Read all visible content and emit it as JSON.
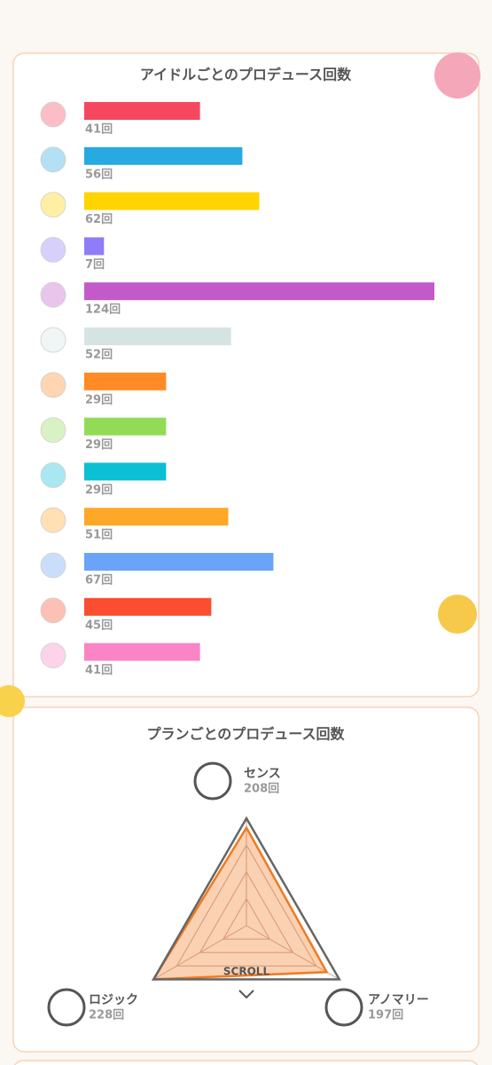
{
  "chart_data": [
    {
      "type": "bar",
      "title": "アイドルごとのプロデュース回数",
      "categories": [
        null,
        null,
        null,
        null,
        null,
        null,
        null,
        null,
        null,
        null,
        null,
        null,
        null
      ],
      "values": [
        41,
        56,
        62,
        7,
        124,
        52,
        29,
        29,
        29,
        51,
        67,
        45,
        41
      ],
      "value_labels": [
        "41回",
        "56回",
        "62回",
        "7回",
        "124回",
        "52回",
        "29回",
        "29回",
        "29回",
        "51回",
        "67回",
        "45回",
        "41回"
      ],
      "colors": [
        "#f7475e",
        "#27a9e1",
        "#ffd400",
        "#8f7cf7",
        "#c25bc9",
        "#d5e3e3",
        "#ff8a26",
        "#92dc55",
        "#0bbfd5",
        "#ffa726",
        "#6aa3f8",
        "#fb4d2f",
        "#fb84c5"
      ]
    },
    {
      "type": "radar",
      "title": "プランごとのプロデュース回数",
      "categories": [
        "センス",
        "ロジック",
        "アノマリー"
      ],
      "values": [
        208,
        228,
        197
      ],
      "value_labels": [
        "208回",
        "228回",
        "197回"
      ],
      "color": "#f07a22",
      "scroll_hint": "SCROLL"
    }
  ]
}
